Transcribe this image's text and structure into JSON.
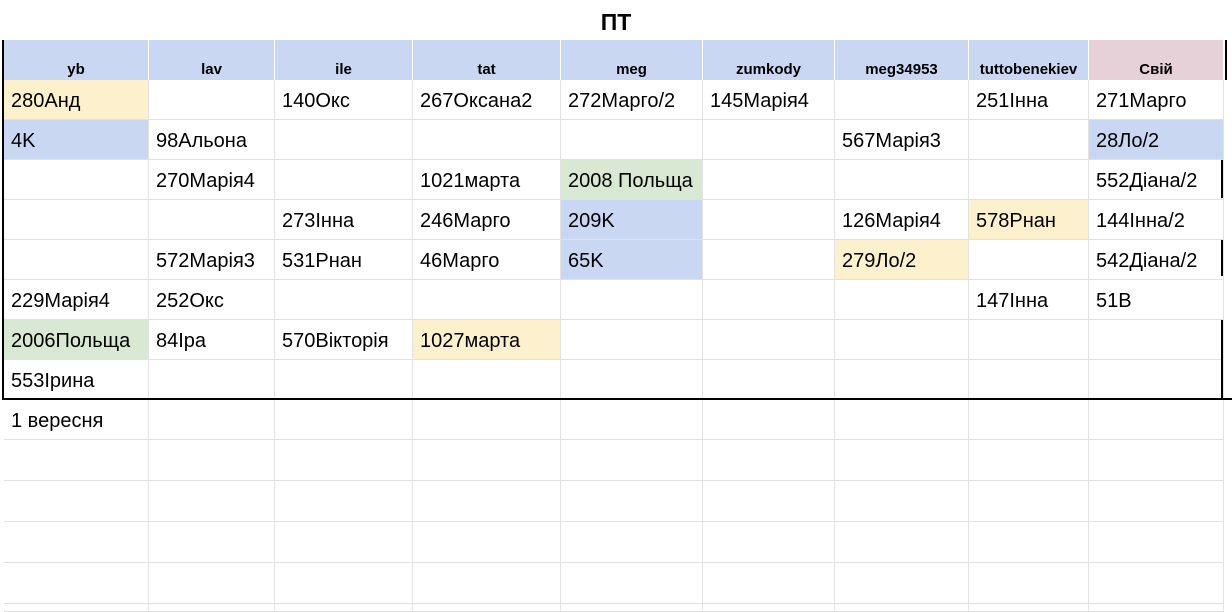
{
  "title": "ПТ",
  "columns": [
    "yb",
    "lav",
    "ile",
    "tat",
    "meg",
    "zumkody",
    "meg34953",
    "tuttobenekiev",
    "Свій"
  ],
  "rows": [
    [
      {
        "t": "280Анд",
        "c": "yellow"
      },
      {
        "t": ""
      },
      {
        "t": "140Окс"
      },
      {
        "t": "267Оксана2"
      },
      {
        "t": "272Марго/2"
      },
      {
        "t": "145Марія4"
      },
      {
        "t": ""
      },
      {
        "t": "251Інна"
      },
      {
        "t": "271Марго"
      }
    ],
    [
      {
        "t": "4K",
        "c": "blue"
      },
      {
        "t": "98Альона"
      },
      {
        "t": ""
      },
      {
        "t": ""
      },
      {
        "t": ""
      },
      {
        "t": ""
      },
      {
        "t": "567Марія3"
      },
      {
        "t": ""
      },
      {
        "t": "28Ло/2",
        "c": "blue"
      }
    ],
    [
      {
        "t": ""
      },
      {
        "t": "270Марія4"
      },
      {
        "t": ""
      },
      {
        "t": "1021марта"
      },
      {
        "t": "2008 Польща",
        "c": "green"
      },
      {
        "t": ""
      },
      {
        "t": ""
      },
      {
        "t": ""
      },
      {
        "t": "552Діана/2"
      }
    ],
    [
      {
        "t": ""
      },
      {
        "t": ""
      },
      {
        "t": "273Інна"
      },
      {
        "t": "246Марго"
      },
      {
        "t": "209K",
        "c": "blue"
      },
      {
        "t": ""
      },
      {
        "t": "126Марія4"
      },
      {
        "t": "578Рнан",
        "c": "yellow"
      },
      {
        "t": "144Інна/2"
      }
    ],
    [
      {
        "t": ""
      },
      {
        "t": "572Марія3"
      },
      {
        "t": "531Рнан"
      },
      {
        "t": "46Марго"
      },
      {
        "t": "65K",
        "c": "blue"
      },
      {
        "t": ""
      },
      {
        "t": "279Ло/2",
        "c": "yellow"
      },
      {
        "t": ""
      },
      {
        "t": "542Діана/2"
      }
    ],
    [
      {
        "t": "229Марія4"
      },
      {
        "t": "252Окс"
      },
      {
        "t": ""
      },
      {
        "t": ""
      },
      {
        "t": ""
      },
      {
        "t": ""
      },
      {
        "t": ""
      },
      {
        "t": "147Інна"
      },
      {
        "t": "51В"
      }
    ],
    [
      {
        "t": "2006Польща",
        "c": "green"
      },
      {
        "t": "84Іра"
      },
      {
        "t": "570Вікторія"
      },
      {
        "t": "1027марта",
        "c": "yellow"
      },
      {
        "t": ""
      },
      {
        "t": ""
      },
      {
        "t": ""
      },
      {
        "t": ""
      },
      {
        "t": ""
      }
    ],
    [
      {
        "t": "553Ірина"
      },
      {
        "t": ""
      },
      {
        "t": ""
      },
      {
        "t": ""
      },
      {
        "t": ""
      },
      {
        "t": ""
      },
      {
        "t": ""
      },
      {
        "t": ""
      },
      {
        "t": ""
      }
    ]
  ],
  "footer_note": "1 вересня",
  "colors": {
    "header_blue": "#c9d7f3",
    "header_pink": "#e6d1d9",
    "yellow": "#fdf0cd",
    "blue": "#c9d7f3",
    "green": "#d9e8d3"
  }
}
